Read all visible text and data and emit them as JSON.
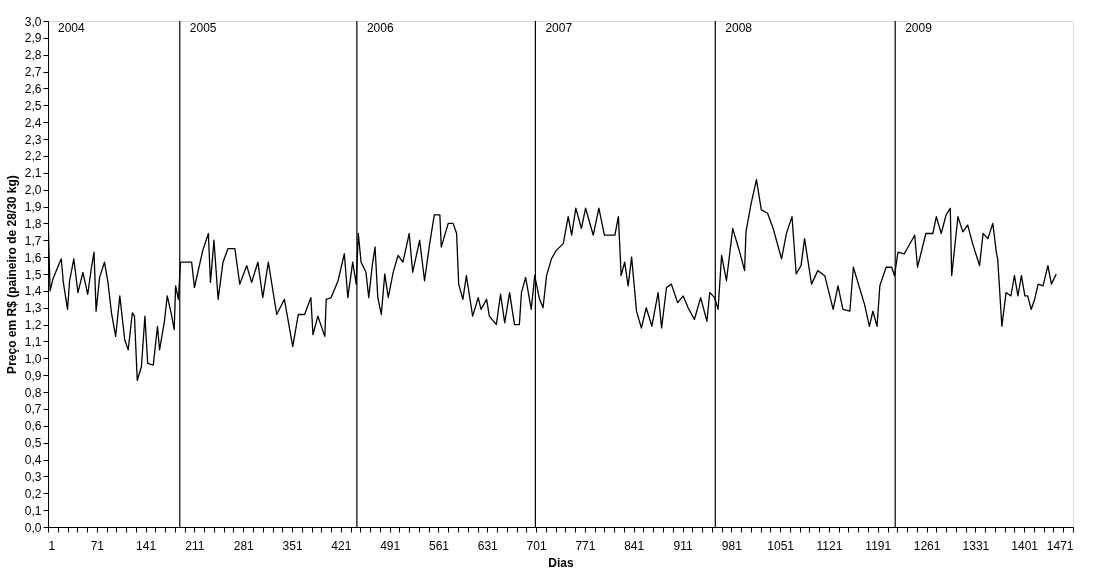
{
  "chart_data": {
    "type": "line",
    "xlabel": "Dias",
    "ylabel": "Preço em R$ (paineiro de 28/30 kg)",
    "xlim": [
      1,
      1471
    ],
    "ylim": [
      0,
      3.0
    ],
    "xticks": [
      1,
      {
        "value": 15,
        "label": null
      },
      {
        "value": 29,
        "label": null
      },
      {
        "value": 43,
        "label": null
      },
      {
        "value": 57,
        "label": null
      },
      71,
      {
        "value": 85,
        "label": null
      },
      {
        "value": 99,
        "label": null
      },
      {
        "value": 113,
        "label": null
      },
      {
        "value": 127,
        "label": null
      },
      141,
      {
        "value": 155,
        "label": null
      },
      {
        "value": 169,
        "label": null
      },
      {
        "value": 183,
        "label": null
      },
      {
        "value": 197,
        "label": null
      },
      211,
      {
        "value": 225,
        "label": null
      },
      {
        "value": 239,
        "label": null
      },
      {
        "value": 253,
        "label": null
      },
      {
        "value": 267,
        "label": null
      },
      281,
      {
        "value": 295,
        "label": null
      },
      {
        "value": 309,
        "label": null
      },
      {
        "value": 323,
        "label": null
      },
      {
        "value": 337,
        "label": null
      },
      351,
      {
        "value": 365,
        "label": null
      },
      {
        "value": 379,
        "label": null
      },
      {
        "value": 393,
        "label": null
      },
      {
        "value": 407,
        "label": null
      },
      421,
      {
        "value": 435,
        "label": null
      },
      {
        "value": 449,
        "label": null
      },
      {
        "value": 463,
        "label": null
      },
      {
        "value": 477,
        "label": null
      },
      491,
      {
        "value": 505,
        "label": null
      },
      {
        "value": 519,
        "label": null
      },
      {
        "value": 533,
        "label": null
      },
      {
        "value": 547,
        "label": null
      },
      561,
      {
        "value": 575,
        "label": null
      },
      {
        "value": 589,
        "label": null
      },
      {
        "value": 603,
        "label": null
      },
      {
        "value": 617,
        "label": null
      },
      631,
      {
        "value": 645,
        "label": null
      },
      {
        "value": 659,
        "label": null
      },
      {
        "value": 673,
        "label": null
      },
      {
        "value": 687,
        "label": null
      },
      701,
      {
        "value": 715,
        "label": null
      },
      {
        "value": 729,
        "label": null
      },
      {
        "value": 743,
        "label": null
      },
      {
        "value": 757,
        "label": null
      },
      771,
      {
        "value": 785,
        "label": null
      },
      {
        "value": 799,
        "label": null
      },
      {
        "value": 813,
        "label": null
      },
      {
        "value": 827,
        "label": null
      },
      841,
      {
        "value": 855,
        "label": null
      },
      {
        "value": 869,
        "label": null
      },
      {
        "value": 883,
        "label": null
      },
      {
        "value": 897,
        "label": null
      },
      911,
      {
        "value": 925,
        "label": null
      },
      {
        "value": 939,
        "label": null
      },
      {
        "value": 953,
        "label": null
      },
      {
        "value": 967,
        "label": null
      },
      981,
      {
        "value": 995,
        "label": null
      },
      {
        "value": 1009,
        "label": null
      },
      {
        "value": 1023,
        "label": null
      },
      {
        "value": 1037,
        "label": null
      },
      1051,
      {
        "value": 1065,
        "label": null
      },
      {
        "value": 1079,
        "label": null
      },
      {
        "value": 1093,
        "label": null
      },
      {
        "value": 1107,
        "label": null
      },
      1121,
      {
        "value": 1135,
        "label": null
      },
      {
        "value": 1149,
        "label": null
      },
      {
        "value": 1163,
        "label": null
      },
      {
        "value": 1177,
        "label": null
      },
      1191,
      {
        "value": 1205,
        "label": null
      },
      {
        "value": 1219,
        "label": null
      },
      {
        "value": 1233,
        "label": null
      },
      {
        "value": 1247,
        "label": null
      },
      1261,
      {
        "value": 1275,
        "label": null
      },
      {
        "value": 1289,
        "label": null
      },
      {
        "value": 1303,
        "label": null
      },
      {
        "value": 1317,
        "label": null
      },
      1331,
      {
        "value": 1345,
        "label": null
      },
      {
        "value": 1359,
        "label": null
      },
      {
        "value": 1373,
        "label": null
      },
      {
        "value": 1387,
        "label": null
      },
      1401,
      {
        "value": 1415,
        "label": null
      },
      {
        "value": 1429,
        "label": null
      },
      {
        "value": 1443,
        "label": null
      },
      {
        "value": 1457,
        "label": null
      },
      1471
    ],
    "yticks": [
      {
        "value": 0,
        "label": "0,0"
      },
      {
        "value": 0.1,
        "label": "0,1"
      },
      {
        "value": 0.2,
        "label": "0,2"
      },
      {
        "value": 0.3,
        "label": "0,3"
      },
      {
        "value": 0.4,
        "label": "0,4"
      },
      {
        "value": 0.5,
        "label": "0,5"
      },
      {
        "value": 0.6,
        "label": "0,6"
      },
      {
        "value": 0.7,
        "label": "0,7"
      },
      {
        "value": 0.8,
        "label": "0,8"
      },
      {
        "value": 0.9,
        "label": "0,9"
      },
      {
        "value": 1.0,
        "label": "1,0"
      },
      {
        "value": 1.1,
        "label": "1,1"
      },
      {
        "value": 1.2,
        "label": "1,2"
      },
      {
        "value": 1.3,
        "label": "1,3"
      },
      {
        "value": 1.4,
        "label": "1,4"
      },
      {
        "value": 1.5,
        "label": "1,5"
      },
      {
        "value": 1.6,
        "label": "1,6"
      },
      {
        "value": 1.7,
        "label": "1,7"
      },
      {
        "value": 1.8,
        "label": "1,8"
      },
      {
        "value": 1.9,
        "label": "1,9"
      },
      {
        "value": 2.0,
        "label": "2,0"
      },
      {
        "value": 2.1,
        "label": "2,1"
      },
      {
        "value": 2.2,
        "label": "2,2"
      },
      {
        "value": 2.3,
        "label": "2,3"
      },
      {
        "value": 2.4,
        "label": "2,4"
      },
      {
        "value": 2.5,
        "label": "2,5"
      },
      {
        "value": 2.6,
        "label": "2,6"
      },
      {
        "value": 2.7,
        "label": "2,7"
      },
      {
        "value": 2.8,
        "label": "2,8"
      },
      {
        "value": 2.9,
        "label": "2,9"
      },
      {
        "value": 3.0,
        "label": "3,0"
      }
    ],
    "grid": false,
    "line_style": "solid",
    "annotations": [
      "2004",
      "2005",
      "2006",
      "2007",
      "2008",
      "2009"
    ],
    "ref_lines": [
      {
        "axis": "x",
        "value": 190,
        "color": "#000000"
      },
      {
        "axis": "x",
        "value": 444,
        "color": "#000000"
      },
      {
        "axis": "x",
        "value": 700,
        "color": "#000000"
      },
      {
        "axis": "x",
        "value": 958,
        "color": "#000000"
      },
      {
        "axis": "x",
        "value": 1216,
        "color": "#000000"
      }
    ],
    "series": [
      {
        "color": "#000000",
        "x": [
          1,
          4,
          8,
          20,
          23,
          29,
          32,
          38,
          44,
          51,
          58,
          63,
          67,
          70,
          75,
          82,
          87,
          92,
          98,
          104,
          111,
          116,
          122,
          125,
          129,
          135,
          140,
          144,
          152,
          158,
          161,
          168,
          172,
          178,
          182,
          184,
          188,
          191,
          207,
          211,
          223,
          231,
          234,
          239,
          245,
          252,
          259,
          269,
          276,
          286,
          293,
          302,
          309,
          317,
          329,
          340,
          352,
          360,
          369,
          378,
          381,
          388,
          398,
          400,
          407,
          417,
          426,
          431,
          438,
          443,
          446,
          450,
          457,
          461,
          466,
          470,
          474,
          479,
          484,
          489,
          496,
          503,
          510,
          519,
          524,
          534,
          541,
          548,
          555,
          563,
          565,
          575,
          582,
          587,
          590,
          596,
          601,
          610,
          618,
          622,
          630,
          634,
          644,
          650,
          656,
          663,
          670,
          677,
          680,
          686,
          694,
          699,
          706,
          711,
          716,
          723,
          730,
          740,
          747,
          752,
          758,
          766,
          772,
          783,
          791,
          799,
          814,
          819,
          823,
          828,
          833,
          838,
          845,
          852,
          859,
          867,
          876,
          881,
          888,
          895,
          904,
          912,
          919,
          928,
          937,
          946,
          950,
          957,
          962,
          967,
          974,
          983,
          993,
          1000,
          1002,
          1009,
          1017,
          1024,
          1033,
          1041,
          1053,
          1060,
          1068,
          1074,
          1081,
          1086,
          1096,
          1105,
          1115,
          1127,
          1134,
          1141,
          1151,
          1156,
          1172,
          1179,
          1184,
          1190,
          1194,
          1203,
          1211,
          1215,
          1220,
          1229,
          1244,
          1248,
          1260,
          1270,
          1275,
          1282,
          1289,
          1295,
          1297,
          1306,
          1313,
          1320,
          1327,
          1337,
          1342,
          1349,
          1356,
          1361,
          1363,
          1369,
          1375,
          1382,
          1387,
          1392,
          1397,
          1402,
          1406,
          1411,
          1416,
          1421,
          1428,
          1435,
          1440,
          1447
        ],
        "values": [
          1.84,
          1.4,
          1.47,
          1.59,
          1.45,
          1.29,
          1.46,
          1.59,
          1.39,
          1.51,
          1.38,
          1.53,
          1.63,
          1.28,
          1.48,
          1.57,
          1.45,
          1.27,
          1.13,
          1.37,
          1.11,
          1.05,
          1.27,
          1.25,
          0.87,
          0.95,
          1.25,
          0.97,
          0.96,
          1.19,
          1.05,
          1.22,
          1.37,
          1.26,
          1.17,
          1.43,
          1.35,
          1.57,
          1.57,
          1.42,
          1.64,
          1.74,
          1.45,
          1.7,
          1.35,
          1.57,
          1.65,
          1.65,
          1.44,
          1.55,
          1.45,
          1.57,
          1.36,
          1.57,
          1.26,
          1.35,
          1.07,
          1.26,
          1.26,
          1.36,
          1.14,
          1.25,
          1.13,
          1.35,
          1.36,
          1.46,
          1.62,
          1.36,
          1.57,
          1.44,
          1.74,
          1.57,
          1.51,
          1.36,
          1.55,
          1.66,
          1.36,
          1.26,
          1.5,
          1.36,
          1.51,
          1.61,
          1.57,
          1.74,
          1.51,
          1.7,
          1.46,
          1.67,
          1.85,
          1.85,
          1.66,
          1.8,
          1.8,
          1.74,
          1.44,
          1.35,
          1.49,
          1.25,
          1.36,
          1.29,
          1.35,
          1.25,
          1.2,
          1.38,
          1.21,
          1.39,
          1.2,
          1.2,
          1.39,
          1.48,
          1.29,
          1.49,
          1.35,
          1.3,
          1.49,
          1.59,
          1.64,
          1.68,
          1.84,
          1.73,
          1.89,
          1.77,
          1.89,
          1.73,
          1.89,
          1.73,
          1.73,
          1.84,
          1.49,
          1.57,
          1.43,
          1.6,
          1.28,
          1.18,
          1.3,
          1.19,
          1.39,
          1.18,
          1.42,
          1.44,
          1.33,
          1.37,
          1.3,
          1.23,
          1.36,
          1.22,
          1.39,
          1.36,
          1.29,
          1.61,
          1.46,
          1.77,
          1.63,
          1.52,
          1.75,
          1.91,
          2.06,
          1.88,
          1.86,
          1.77,
          1.59,
          1.74,
          1.84,
          1.5,
          1.55,
          1.71,
          1.44,
          1.52,
          1.49,
          1.29,
          1.43,
          1.29,
          1.28,
          1.54,
          1.32,
          1.19,
          1.28,
          1.19,
          1.43,
          1.54,
          1.54,
          1.49,
          1.63,
          1.62,
          1.73,
          1.54,
          1.74,
          1.74,
          1.84,
          1.74,
          1.85,
          1.89,
          1.49,
          1.84,
          1.75,
          1.79,
          1.68,
          1.55,
          1.74,
          1.71,
          1.8,
          1.63,
          1.59,
          1.19,
          1.39,
          1.37,
          1.49,
          1.37,
          1.49,
          1.37,
          1.37,
          1.29,
          1.35,
          1.44,
          1.43,
          1.55,
          1.44,
          1.5
        ]
      }
    ]
  }
}
